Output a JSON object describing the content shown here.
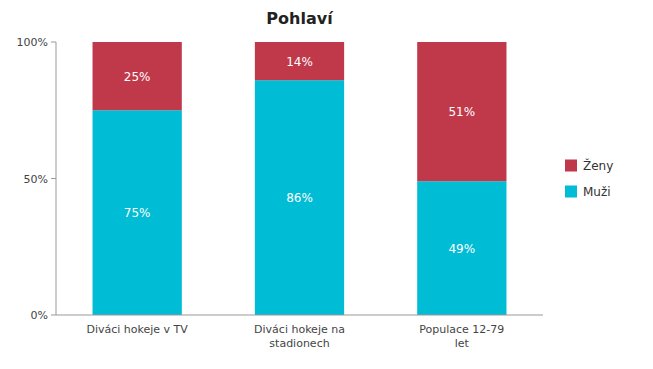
{
  "chart_data": {
    "type": "bar",
    "title": "Pohlaví",
    "categories": [
      "Diváci hokeje v TV",
      "Diváci hokeje na\nstadionech",
      "Populace 12-79\nlet"
    ],
    "series": [
      {
        "name": "Muži",
        "color": "#00bcd4",
        "values": [
          75,
          86,
          49
        ],
        "value_labels": [
          "75%",
          "86%",
          "49%"
        ]
      },
      {
        "name": "Ženy",
        "color": "#c0394b",
        "values": [
          25,
          14,
          51
        ],
        "value_labels": [
          "25%",
          "14%",
          "51%"
        ]
      }
    ],
    "stacked": true,
    "data_labels": true,
    "ylim": [
      0,
      100
    ],
    "yticks": [
      {
        "value": 0,
        "label": "0%"
      },
      {
        "value": 50,
        "label": "50%"
      },
      {
        "value": 100,
        "label": "100%"
      }
    ],
    "grid": false,
    "legend": "right"
  }
}
